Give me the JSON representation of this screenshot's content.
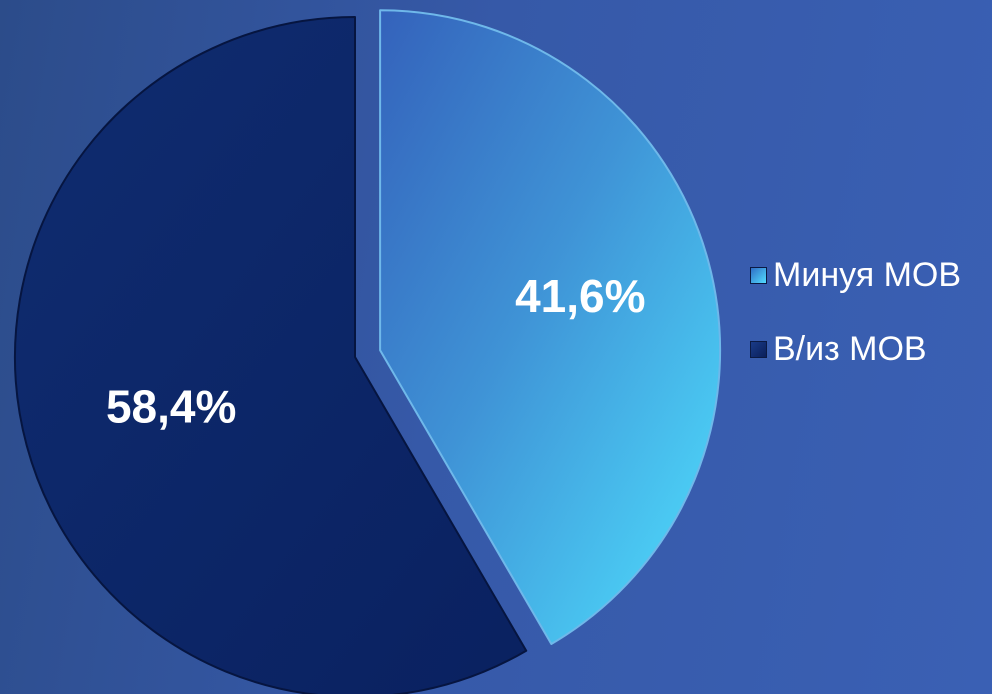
{
  "chart_data": {
    "type": "pie",
    "title": "",
    "categories": [
      "Минуя МОВ",
      "В/из МОВ"
    ],
    "values": [
      41.6,
      58.4
    ],
    "data_labels": [
      "41,6%",
      "58,4%"
    ],
    "colors": [
      "#3fb6ea",
      "#0c2668"
    ],
    "exploded": [
      true,
      false
    ],
    "legend": "right"
  }
}
